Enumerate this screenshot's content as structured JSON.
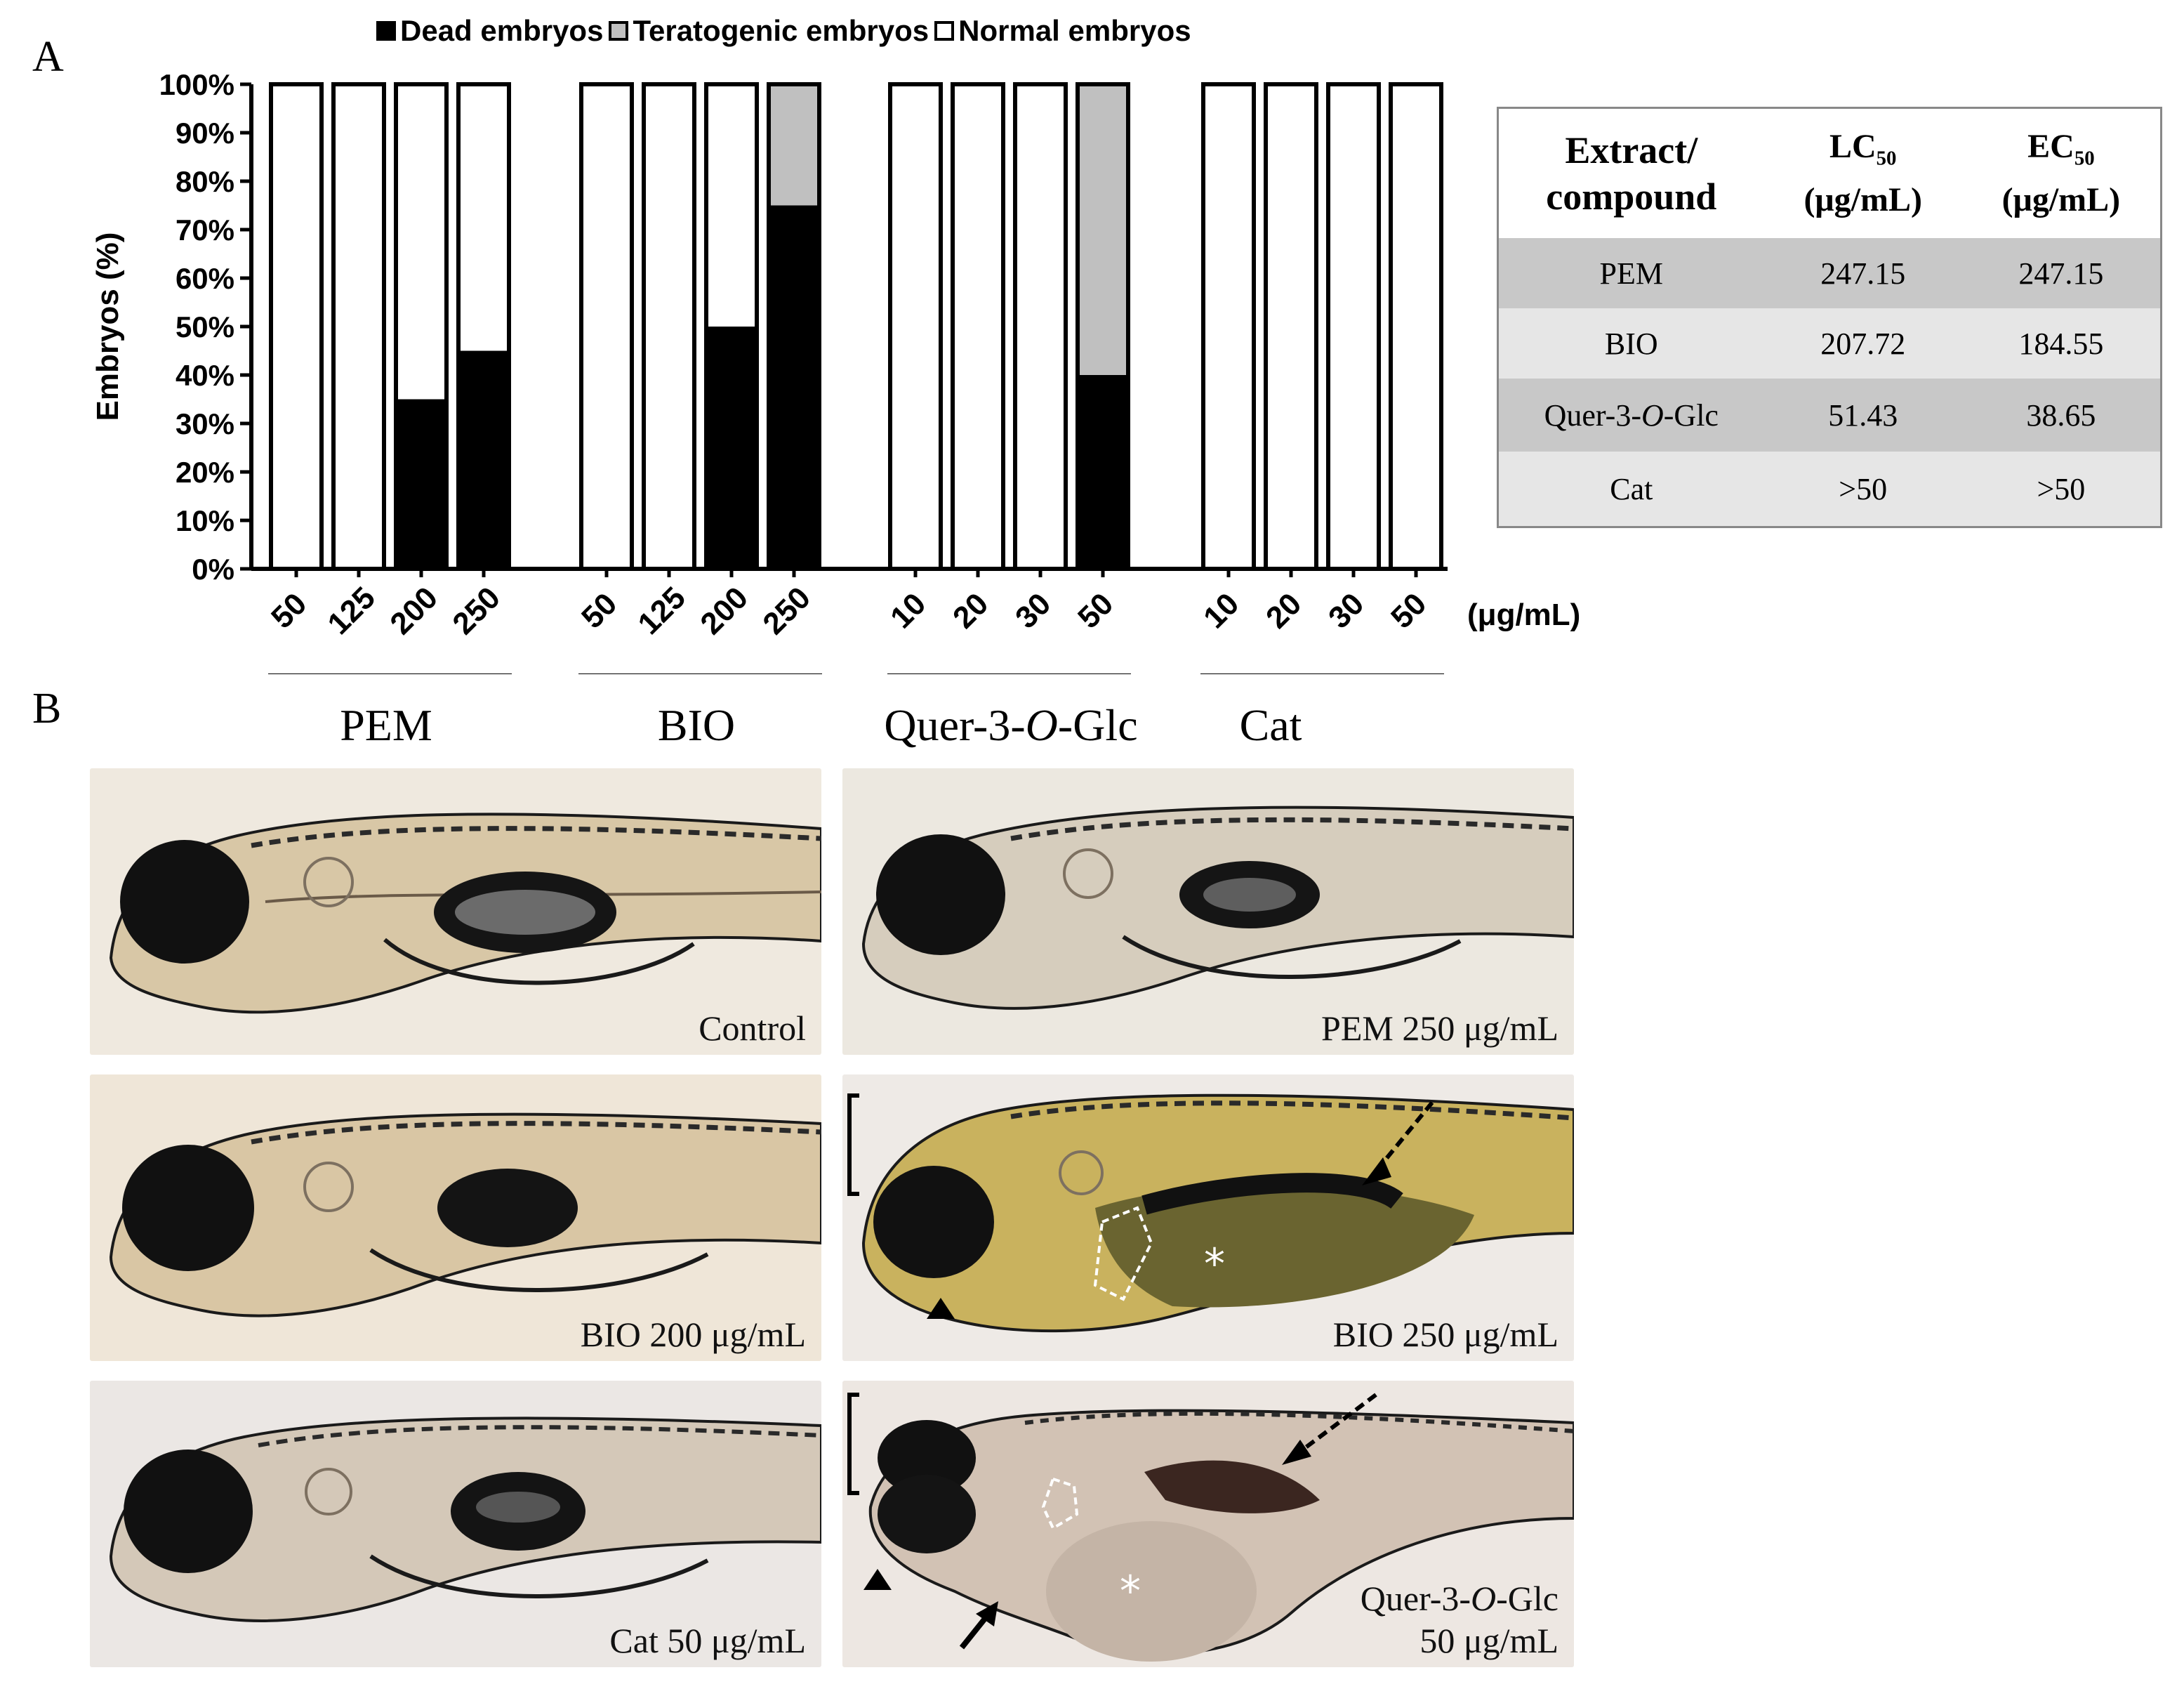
{
  "panel_a_label": "A",
  "panel_b_label": "B",
  "legend": [
    {
      "label": "Dead embryos",
      "color": "#000000"
    },
    {
      "label": "Teratogenic embryos",
      "color": "#c0c0c0"
    },
    {
      "label": "Normal embryos",
      "color": "#ffffff"
    }
  ],
  "unit_label": "(μg/mL)",
  "chart_data": {
    "type": "bar",
    "stacked": true,
    "ylabel": "Embryos (%)",
    "ylim": [
      0,
      100
    ],
    "y_ticks": [
      "0%",
      "10%",
      "20%",
      "30%",
      "40%",
      "50%",
      "60%",
      "70%",
      "80%",
      "90%",
      "100%"
    ],
    "groups": [
      {
        "name": "PEM",
        "categories": [
          "50",
          "125",
          "200",
          "250"
        ]
      },
      {
        "name": "BIO",
        "categories": [
          "50",
          "125",
          "200",
          "250"
        ]
      },
      {
        "name": "Quer-3-O-Glc",
        "categories": [
          "10",
          "20",
          "30",
          "50"
        ]
      },
      {
        "name": "Cat",
        "categories": [
          "10",
          "20",
          "30",
          "50"
        ]
      }
    ],
    "series": [
      {
        "name": "Dead embryos",
        "values": [
          0,
          0,
          35,
          45,
          0,
          0,
          50,
          75,
          0,
          0,
          0,
          40,
          0,
          0,
          0,
          0
        ]
      },
      {
        "name": "Teratogenic embryos",
        "values": [
          0,
          0,
          0,
          0,
          0,
          0,
          0,
          25,
          0,
          0,
          0,
          60,
          0,
          0,
          0,
          0
        ]
      },
      {
        "name": "Normal embryos",
        "values": [
          100,
          100,
          65,
          55,
          100,
          100,
          50,
          0,
          100,
          100,
          100,
          0,
          100,
          100,
          100,
          100
        ]
      }
    ],
    "grid": false
  },
  "table": {
    "headers": [
      "Extract/ compound",
      "LC50 (μg/mL)",
      "EC50 (μg/mL)"
    ],
    "rows": [
      {
        "compound": "PEM",
        "lc50": "247.15",
        "ec50": "247.15"
      },
      {
        "compound": "BIO",
        "lc50": "207.72",
        "ec50": "184.55"
      },
      {
        "compound": "Quer-3-O-Glc",
        "lc50": "51.43",
        "ec50": "38.65"
      },
      {
        "compound": "Cat",
        "lc50": ">50",
        "ec50": ">50"
      }
    ]
  },
  "photos": [
    {
      "caption": "Control"
    },
    {
      "caption": "PEM 250 μg/mL"
    },
    {
      "caption": "BIO 200 μg/mL"
    },
    {
      "caption": "BIO 250 μg/mL"
    },
    {
      "caption": "Cat 50 μg/mL"
    },
    {
      "caption": "Quer-3-O-Glc\n50 μg/mL"
    }
  ]
}
